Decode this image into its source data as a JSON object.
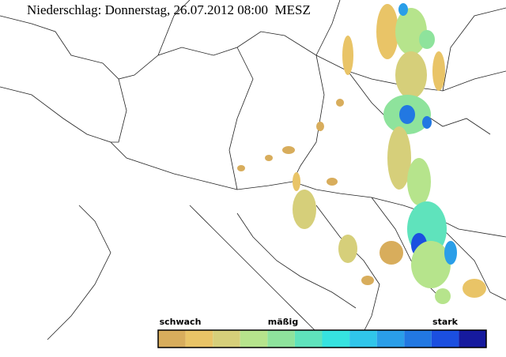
{
  "header": {
    "title": "Niederschlag: Donnerstag, 26.07.2012 08:00  MESZ"
  },
  "legend": {
    "labels": [
      "schwach",
      "mäßig",
      "stark"
    ],
    "colors": [
      "#d8ad5c",
      "#e9c467",
      "#d6cf7a",
      "#b6e48c",
      "#8ee39c",
      "#5fe3bc",
      "#36e3e0",
      "#30c6ea",
      "#2a9ee8",
      "#2278e2",
      "#1b4fe0",
      "#161a9e"
    ]
  }
}
